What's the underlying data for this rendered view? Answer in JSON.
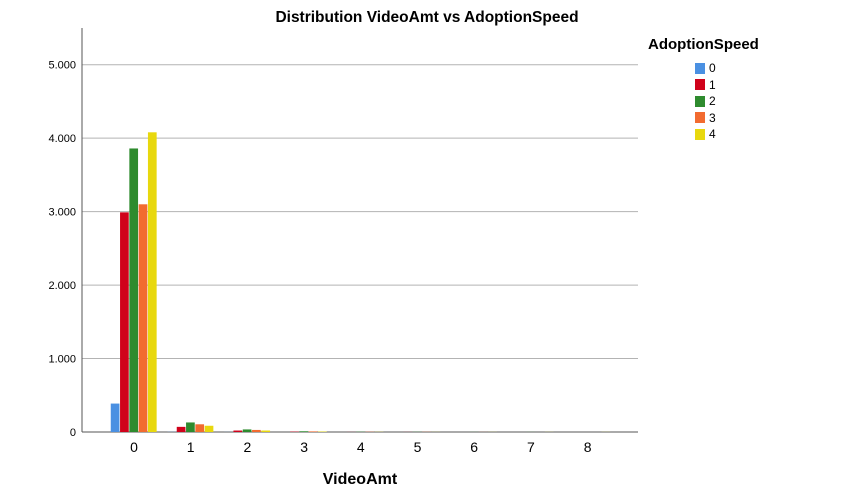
{
  "chart_data": {
    "type": "bar",
    "title": "Distribution VideoAmt vs AdoptionSpeed",
    "xlabel": "VideoAmt",
    "ylabel": "",
    "categories": [
      "0",
      "1",
      "2",
      "3",
      "4",
      "5",
      "6",
      "7",
      "8"
    ],
    "series": [
      {
        "name": "0",
        "color": "#4a90e2",
        "values": [
          387,
          2,
          1,
          0,
          0,
          0,
          0,
          0,
          0
        ]
      },
      {
        "name": "1",
        "color": "#d0021b",
        "values": [
          2990,
          70,
          20,
          5,
          1,
          1,
          0,
          0,
          0
        ]
      },
      {
        "name": "2",
        "color": "#2e8b2e",
        "values": [
          3860,
          130,
          35,
          10,
          3,
          2,
          1,
          1,
          0
        ]
      },
      {
        "name": "3",
        "color": "#f26b30",
        "values": [
          3100,
          105,
          28,
          8,
          3,
          2,
          1,
          0,
          0
        ]
      },
      {
        "name": "4",
        "color": "#e8d80e",
        "values": [
          4080,
          85,
          20,
          6,
          2,
          1,
          1,
          1,
          1
        ]
      }
    ],
    "y_ticks": [
      0,
      1000,
      2000,
      3000,
      4000,
      5000
    ],
    "y_tick_labels": [
      "0",
      "1.000",
      "2.000",
      "3.000",
      "4.000",
      "5.000"
    ],
    "ylim": [
      0,
      5500
    ],
    "grid": true,
    "legend": {
      "title": "AdoptionSpeed",
      "position": "top-right"
    }
  }
}
